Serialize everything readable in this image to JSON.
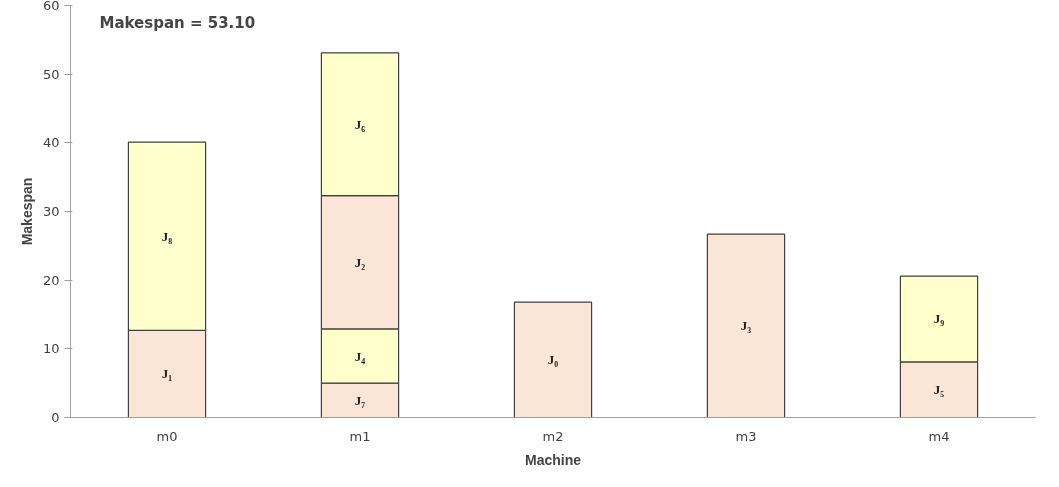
{
  "chart_data": {
    "type": "bar",
    "stacked": true,
    "xlabel": "Machine",
    "ylabel": "Makespan",
    "categories": [
      "m0",
      "m1",
      "m2",
      "m3",
      "m4"
    ],
    "series": [
      {
        "color": "#fbe5d6",
        "values": [
          12.7,
          5.0,
          16.8,
          26.7,
          8.1
        ],
        "value_labels": [
          "J₁",
          "J₇",
          "J₀",
          "J₃",
          "J₅"
        ]
      },
      {
        "color": "#ffffcc",
        "values": [
          27.4,
          7.9,
          null,
          null,
          12.5
        ],
        "value_labels": [
          "J₈",
          "J₄",
          null,
          null,
          "J₉"
        ]
      },
      {
        "color": "#fbe5d6",
        "values": [
          null,
          19.4,
          null,
          null,
          null
        ],
        "value_labels": [
          null,
          "J₂",
          null,
          null,
          null
        ]
      },
      {
        "color": "#ffffcc",
        "values": [
          null,
          20.8,
          null,
          null,
          null
        ],
        "value_labels": [
          null,
          "J₆",
          null,
          null,
          null
        ]
      }
    ],
    "annotations": [
      "Makespan = 53.10"
    ],
    "ylim": [
      0,
      60
    ],
    "yticks": [
      0,
      10,
      20,
      30,
      40,
      50,
      60
    ],
    "grid": false
  }
}
